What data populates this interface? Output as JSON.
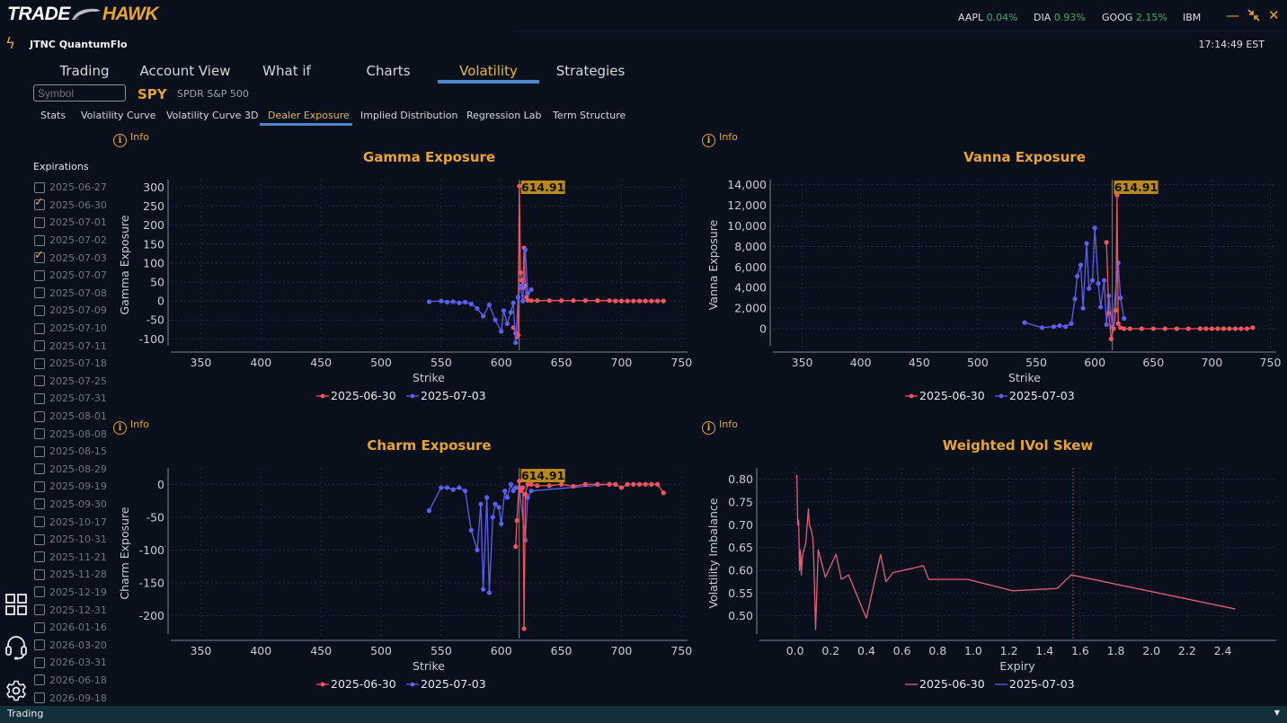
{
  "brand": {
    "part1": "TRADE",
    "part2": "HAWK"
  },
  "header": {
    "tickers": [
      {
        "symbol": "AAPL",
        "change": "0.04%"
      },
      {
        "symbol": "DIA",
        "change": "0.93%"
      },
      {
        "symbol": "GOOG",
        "change": "2.15%"
      },
      {
        "symbol": "IBM",
        "change": ""
      }
    ],
    "app_name": "JTNC QuantumFlo",
    "clock": "17:14:49 EST",
    "window_controls": {
      "minimize": "—",
      "restore": "⇲",
      "close": "✕"
    }
  },
  "main_tabs": [
    {
      "label": "Trading"
    },
    {
      "label": "Account View"
    },
    {
      "label": "What if"
    },
    {
      "label": "Charts"
    },
    {
      "label": "Volatility",
      "active": true
    },
    {
      "label": "Strategies"
    }
  ],
  "symbol_bar": {
    "placeholder": "Symbol",
    "symbol": "SPY",
    "name": "SPDR S&P 500"
  },
  "sub_tabs": [
    {
      "label": "Stats"
    },
    {
      "label": "Volatility Curve"
    },
    {
      "label": "Volatility Curve 3D"
    },
    {
      "label": "Dealer Exposure",
      "active": true
    },
    {
      "label": "Implied Distribution"
    },
    {
      "label": "Regression Lab"
    },
    {
      "label": "Term Structure"
    }
  ],
  "info_label": "Info",
  "expirations": {
    "title": "Expirations",
    "items": [
      {
        "date": "2025-06-27",
        "checked": false
      },
      {
        "date": "2025-06-30",
        "checked": true
      },
      {
        "date": "2025-07-01",
        "checked": false
      },
      {
        "date": "2025-07-02",
        "checked": false
      },
      {
        "date": "2025-07-03",
        "checked": true
      },
      {
        "date": "2025-07-07",
        "checked": false
      },
      {
        "date": "2025-07-08",
        "checked": false
      },
      {
        "date": "2025-07-09",
        "checked": false
      },
      {
        "date": "2025-07-10",
        "checked": false
      },
      {
        "date": "2025-07-11",
        "checked": false
      },
      {
        "date": "2025-07-18",
        "checked": false
      },
      {
        "date": "2025-07-25",
        "checked": false
      },
      {
        "date": "2025-07-31",
        "checked": false
      },
      {
        "date": "2025-08-01",
        "checked": false
      },
      {
        "date": "2025-08-08",
        "checked": false
      },
      {
        "date": "2025-08-15",
        "checked": false
      },
      {
        "date": "2025-08-29",
        "checked": false
      },
      {
        "date": "2025-09-19",
        "checked": false
      },
      {
        "date": "2025-09-30",
        "checked": false
      },
      {
        "date": "2025-10-17",
        "checked": false
      },
      {
        "date": "2025-10-31",
        "checked": false
      },
      {
        "date": "2025-11-21",
        "checked": false
      },
      {
        "date": "2025-11-28",
        "checked": false
      },
      {
        "date": "2025-12-19",
        "checked": false
      },
      {
        "date": "2025-12-31",
        "checked": false
      },
      {
        "date": "2026-01-16",
        "checked": false
      },
      {
        "date": "2026-03-20",
        "checked": false
      },
      {
        "date": "2026-03-31",
        "checked": false
      },
      {
        "date": "2026-06-18",
        "checked": false
      },
      {
        "date": "2026-09-18",
        "checked": false
      }
    ]
  },
  "sidebar_icons": [
    "grid-icon",
    "headset-icon",
    "gear-icon"
  ],
  "status_bar": {
    "label": "Trading"
  },
  "colors": {
    "accent": "#e6a532",
    "series_a": "#f0555e",
    "series_b": "#5b5ef0",
    "tab_underline": "#4d86cc",
    "gain": "#3fae6a"
  },
  "chart_data": [
    {
      "type": "line",
      "title": "Gamma Exposure",
      "xlabel": "Strike",
      "ylabel": "Gamma Exposure",
      "xlim": [
        325,
        755
      ],
      "ylim": [
        -130,
        320
      ],
      "xticks": [
        350,
        400,
        450,
        500,
        550,
        600,
        650,
        700,
        750
      ],
      "yticks": [
        -100,
        -50,
        0,
        50,
        100,
        150,
        200,
        250,
        300
      ],
      "spot": 614.91,
      "spot_label": "614.91",
      "legend": "bottom",
      "series": [
        {
          "name": "2025-06-30",
          "x": [
            610,
            612,
            613,
            614,
            615,
            616,
            617,
            618,
            619,
            620,
            621,
            622,
            625,
            630,
            640,
            650,
            660,
            670,
            680,
            690,
            695,
            700,
            705,
            710,
            715,
            720,
            725,
            730,
            735
          ],
          "y": [
            -70,
            -85,
            -95,
            -90,
            303,
            75,
            55,
            35,
            140,
            40,
            10,
            2,
            1,
            1,
            1,
            1,
            1,
            1,
            1,
            1,
            0,
            0,
            0,
            0,
            0,
            0,
            0,
            0,
            0
          ]
        },
        {
          "name": "2025-07-03",
          "x": [
            540,
            550,
            555,
            560,
            565,
            570,
            575,
            580,
            585,
            590,
            595,
            600,
            602,
            605,
            608,
            610,
            612,
            614,
            616,
            618,
            620,
            622,
            625
          ],
          "y": [
            -2,
            0,
            -3,
            -2,
            -5,
            -3,
            -8,
            -20,
            -40,
            -10,
            -50,
            -80,
            -25,
            -60,
            -30,
            -5,
            -110,
            10,
            40,
            0,
            135,
            20,
            30
          ]
        }
      ]
    },
    {
      "type": "line",
      "title": "Vanna Exposure",
      "xlabel": "Strike",
      "ylabel": "Vanna Exposure",
      "xlim": [
        325,
        755
      ],
      "ylim": [
        -2100,
        14500
      ],
      "xticks": [
        350,
        400,
        450,
        500,
        550,
        600,
        650,
        700,
        750
      ],
      "yticks": [
        0,
        2000,
        4000,
        6000,
        8000,
        10000,
        12000,
        14000
      ],
      "yticklabels": [
        "0",
        "2,000",
        "4,000",
        "6,000",
        "8,000",
        "10,000",
        "12,000",
        "14,000"
      ],
      "spot": 614.91,
      "spot_label": "614.91",
      "legend": "bottom",
      "series": [
        {
          "name": "2025-06-30",
          "x": [
            610,
            612,
            614,
            616,
            618,
            619,
            620,
            622,
            625,
            630,
            640,
            650,
            660,
            670,
            680,
            690,
            695,
            700,
            705,
            710,
            715,
            720,
            725,
            730,
            735
          ],
          "y": [
            8400,
            1500,
            -1000,
            0,
            1800,
            13000,
            500,
            100,
            0,
            0,
            0,
            0,
            0,
            0,
            0,
            0,
            0,
            0,
            0,
            0,
            0,
            0,
            0,
            0,
            100
          ]
        },
        {
          "name": "2025-07-03",
          "x": [
            540,
            555,
            565,
            570,
            575,
            580,
            583,
            585,
            588,
            590,
            593,
            595,
            598,
            600,
            603,
            605,
            608,
            610,
            612,
            615,
            620,
            622,
            625
          ],
          "y": [
            600,
            100,
            200,
            300,
            200,
            500,
            2900,
            5100,
            6200,
            2000,
            8300,
            3900,
            4700,
            9800,
            4400,
            2100,
            4700,
            400,
            3200,
            200,
            6400,
            3000,
            1000
          ]
        }
      ]
    },
    {
      "type": "line",
      "title": "Charm Exposure",
      "xlabel": "Strike",
      "ylabel": "Charm Exposure",
      "xlim": [
        325,
        755
      ],
      "ylim": [
        -235,
        25
      ],
      "xticks": [
        350,
        400,
        450,
        500,
        550,
        600,
        650,
        700,
        750
      ],
      "yticks": [
        -200,
        -150,
        -100,
        -50,
        0
      ],
      "spot": 614.91,
      "spot_label": "614.91",
      "legend": "bottom",
      "series": [
        {
          "name": "2025-06-30",
          "x": [
            612,
            613,
            615,
            616,
            618,
            619,
            620,
            622,
            625,
            630,
            640,
            650,
            660,
            670,
            680,
            690,
            695,
            700,
            705,
            710,
            715,
            720,
            725,
            730,
            735
          ],
          "y": [
            -95,
            -55,
            5,
            -10,
            -5,
            -220,
            -15,
            0,
            0,
            -2,
            -2,
            0,
            -3,
            0,
            0,
            0,
            0,
            -5,
            0,
            0,
            0,
            0,
            0,
            0,
            -13
          ]
        },
        {
          "name": "2025-07-03",
          "x": [
            540,
            550,
            555,
            560,
            565,
            570,
            575,
            580,
            583,
            585,
            588,
            590,
            593,
            595,
            598,
            600,
            603,
            605,
            608,
            610,
            612,
            615,
            620,
            622,
            625,
            690
          ],
          "y": [
            -40,
            -5,
            -5,
            -8,
            -5,
            -10,
            -70,
            -100,
            -30,
            -160,
            -20,
            -165,
            -50,
            -30,
            -35,
            -60,
            -10,
            -20,
            0,
            -10,
            -5,
            -5,
            -85,
            -20,
            -10,
            0
          ]
        }
      ]
    },
    {
      "type": "line",
      "title": "Weighted IVol Skew",
      "xlabel": "Expiry",
      "ylabel": "Volatility Imbalance",
      "xlim": [
        -0.2,
        2.7
      ],
      "ylim": [
        0.45,
        0.825
      ],
      "xticks": [
        0.0,
        0.2,
        0.4,
        0.6,
        0.8,
        1.0,
        1.2,
        1.4,
        1.6,
        1.8,
        2.0,
        2.2,
        2.4
      ],
      "xticklabels": [
        "0.0",
        "0.2",
        "0.4",
        "0.6",
        "0.8",
        "1.0",
        "1.2",
        "1.4",
        "1.6",
        "1.8",
        "2.0",
        "2.2",
        "2.4"
      ],
      "yticks": [
        0.5,
        0.55,
        0.6,
        0.65,
        0.7,
        0.75,
        0.8
      ],
      "yticklabels": [
        "0.50",
        "0.55",
        "0.60",
        "0.65",
        "0.70",
        "0.75",
        "0.80"
      ],
      "marker_x": 1.56,
      "legend": "bottom",
      "series": [
        {
          "name": "2025-06-30",
          "x": [
            0.01,
            0.015,
            0.02,
            0.025,
            0.03,
            0.035,
            0.04,
            0.06,
            0.075,
            0.08,
            0.09,
            0.1,
            0.105,
            0.115,
            0.13,
            0.17,
            0.23,
            0.26,
            0.3,
            0.4,
            0.48,
            0.51,
            0.55,
            0.72,
            0.75,
            0.97,
            1.22,
            1.47,
            1.55,
            2.47
          ],
          "y": [
            0.81,
            0.7,
            0.71,
            0.6,
            0.645,
            0.59,
            0.63,
            0.66,
            0.735,
            0.7,
            0.69,
            0.67,
            0.62,
            0.47,
            0.645,
            0.585,
            0.635,
            0.58,
            0.59,
            0.495,
            0.635,
            0.575,
            0.595,
            0.61,
            0.58,
            0.58,
            0.555,
            0.56,
            0.59,
            0.515
          ]
        },
        {
          "name": "2025-07-03",
          "x": [],
          "y": []
        }
      ]
    }
  ]
}
